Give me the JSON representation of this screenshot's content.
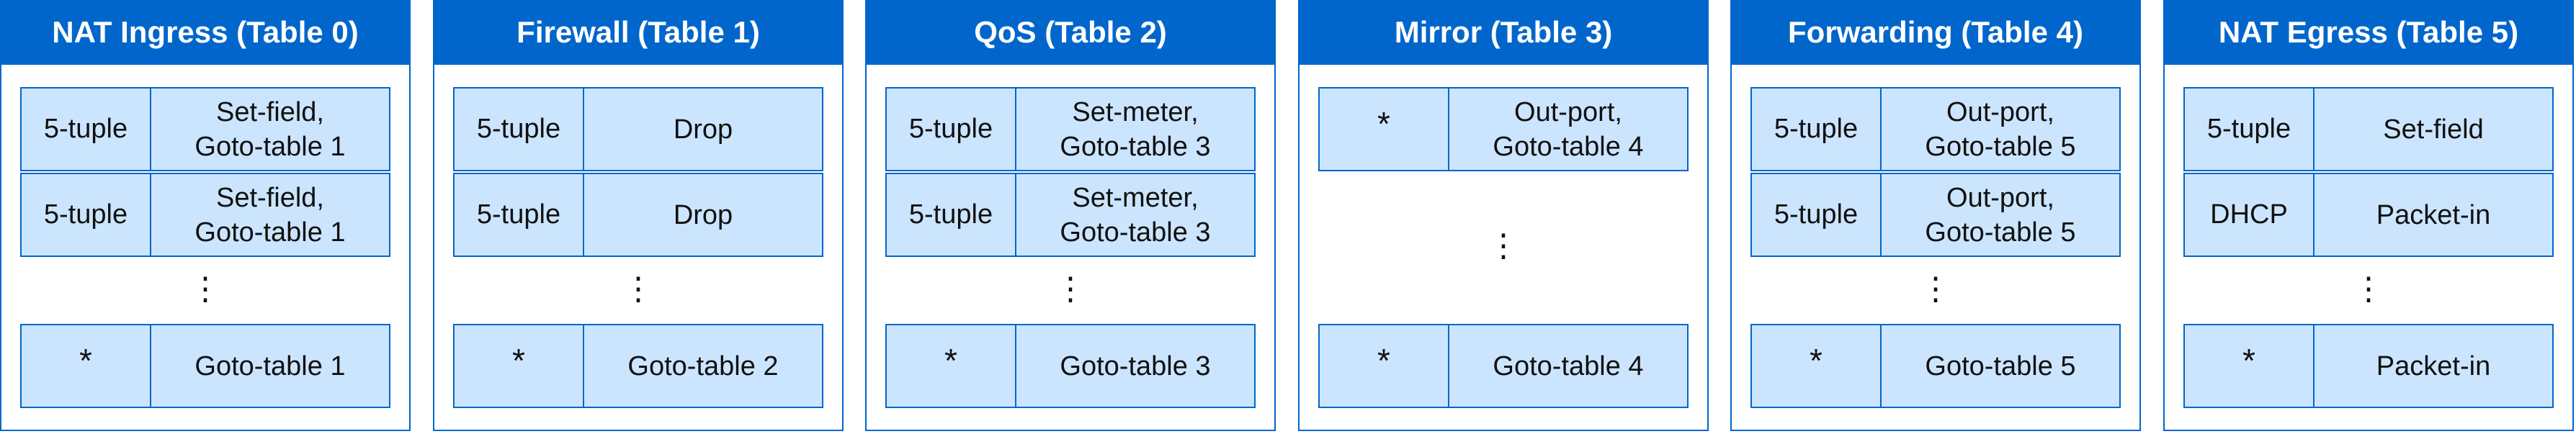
{
  "colors": {
    "header_bg": "#0066cc",
    "row_bg": "#cce5ff",
    "border": "#0066cc",
    "text": "#111111"
  },
  "ellipsis": "⋮",
  "tables": [
    {
      "title": "NAT Ingress (Table 0)",
      "rows": [
        {
          "match": "5-tuple",
          "action": "Set-field,\nGoto-table 1"
        },
        {
          "match": "5-tuple",
          "action": "Set-field,\nGoto-table 1"
        }
      ],
      "default": {
        "match": "*",
        "action": "Goto-table 1"
      }
    },
    {
      "title": "Firewall (Table 1)",
      "rows": [
        {
          "match": "5-tuple",
          "action": "Drop"
        },
        {
          "match": "5-tuple",
          "action": "Drop"
        }
      ],
      "default": {
        "match": "*",
        "action": "Goto-table 2"
      }
    },
    {
      "title": "QoS (Table 2)",
      "rows": [
        {
          "match": "5-tuple",
          "action": "Set-meter,\nGoto-table 3"
        },
        {
          "match": "5-tuple",
          "action": "Set-meter,\nGoto-table 3"
        }
      ],
      "default": {
        "match": "*",
        "action": "Goto-table 3"
      }
    },
    {
      "title": "Mirror (Table 3)",
      "rows": [
        {
          "match": "*",
          "action": "Out-port,\nGoto-table 4"
        }
      ],
      "default": {
        "match": "*",
        "action": "Goto-table 4"
      }
    },
    {
      "title": "Forwarding (Table 4)",
      "rows": [
        {
          "match": "5-tuple",
          "action": "Out-port,\nGoto-table 5"
        },
        {
          "match": "5-tuple",
          "action": "Out-port,\nGoto-table 5"
        }
      ],
      "default": {
        "match": "*",
        "action": "Goto-table 5"
      }
    },
    {
      "title": "NAT Egress (Table 5)",
      "rows": [
        {
          "match": "5-tuple",
          "action": "Set-field"
        },
        {
          "match": "DHCP",
          "action": "Packet-in"
        }
      ],
      "default": {
        "match": "*",
        "action": "Packet-in"
      }
    }
  ]
}
